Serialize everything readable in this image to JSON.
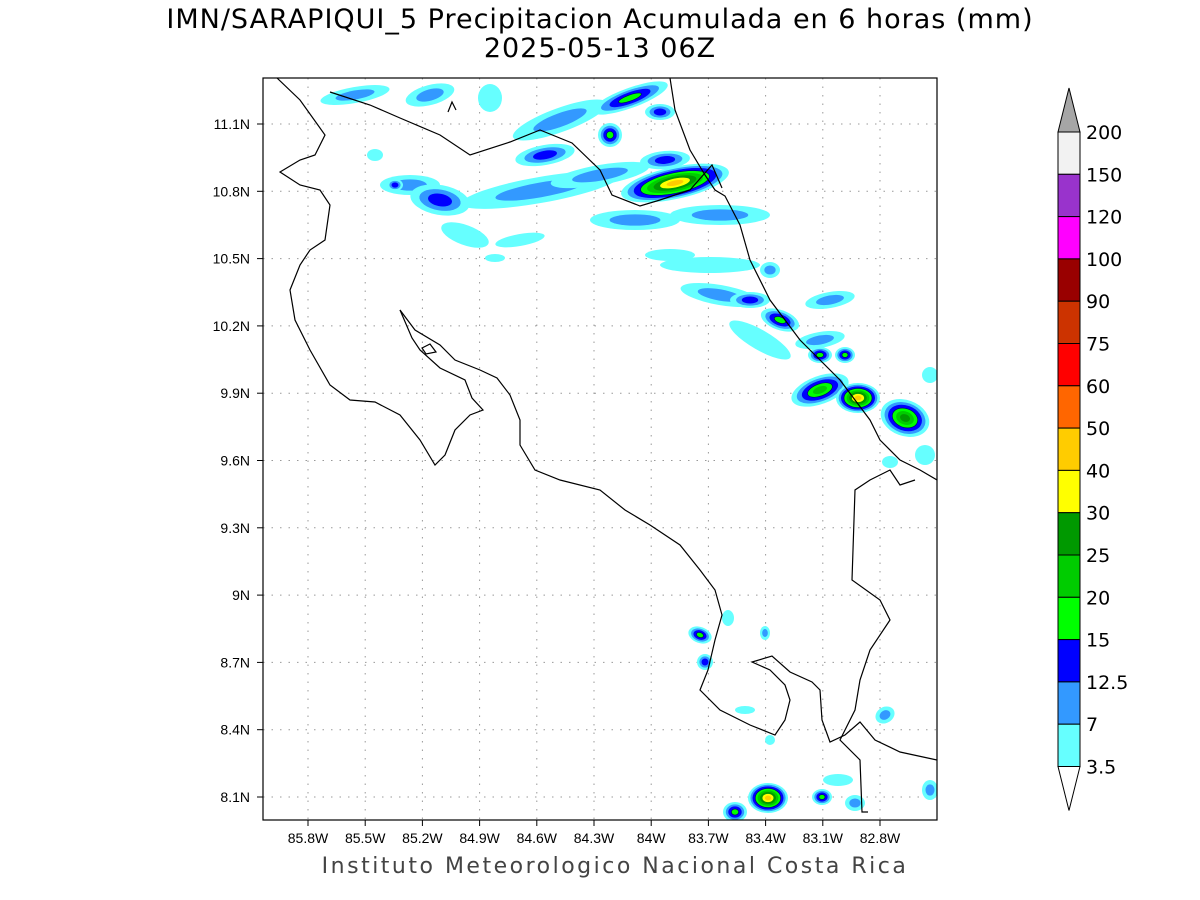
{
  "title": {
    "line1": "IMN/SARAPIQUI_5 Precipitacion Acumulada en 6 horas (mm)",
    "line2": "2025-05-13 06Z"
  },
  "footer": "Instituto Meteorologico Nacional Costa Rica",
  "axes": {
    "lat_labels": [
      "11.1N",
      "10.8N",
      "10.5N",
      "10.2N",
      "9.9N",
      "9.6N",
      "9.3N",
      "9N",
      "8.7N",
      "8.4N",
      "8.1N"
    ],
    "lon_labels": [
      "85.8W",
      "85.5W",
      "85.2W",
      "84.9W",
      "84.6W",
      "84.3W",
      "84W",
      "83.7W",
      "83.4W",
      "83.1W",
      "82.8W"
    ]
  },
  "colorbar": {
    "levels": [
      "3.5",
      "7",
      "12.5",
      "15",
      "20",
      "25",
      "30",
      "40",
      "50",
      "60",
      "75",
      "90",
      "100",
      "120",
      "150",
      "200"
    ],
    "colors": [
      "#66ffff",
      "#3399ff",
      "#0000ff",
      "#00ff00",
      "#00cc00",
      "#009900",
      "#ffff00",
      "#ffcc00",
      "#ff6600",
      "#ff0000",
      "#cc3300",
      "#990000",
      "#ff00ff",
      "#9933cc",
      "#f2f2f2"
    ],
    "over_color": "#a6a6a6",
    "under_color": "#ffffff"
  }
}
